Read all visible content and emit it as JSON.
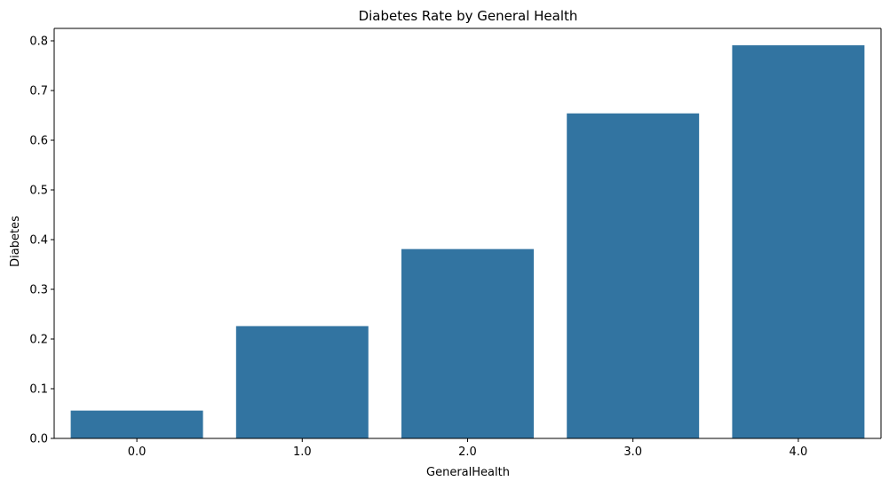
{
  "chart_data": {
    "type": "bar",
    "title": "Diabetes Rate by General Health",
    "xlabel": "GeneralHealth",
    "ylabel": "Diabetes",
    "categories": [
      "0.0",
      "1.0",
      "2.0",
      "3.0",
      "4.0"
    ],
    "series": [
      {
        "values": [
          0.056,
          0.226,
          0.381,
          0.654,
          0.791
        ]
      }
    ],
    "ylim": [
      0,
      0.825
    ],
    "yticks": [
      "0.0",
      "0.1",
      "0.2",
      "0.3",
      "0.4",
      "0.5",
      "0.6",
      "0.7",
      "0.8"
    ],
    "ytick_values": [
      0,
      0.1,
      0.2,
      0.3,
      0.4,
      0.5,
      0.6,
      0.7,
      0.8
    ],
    "bar_color": "#3274a1",
    "grid": false,
    "legend": "none"
  }
}
